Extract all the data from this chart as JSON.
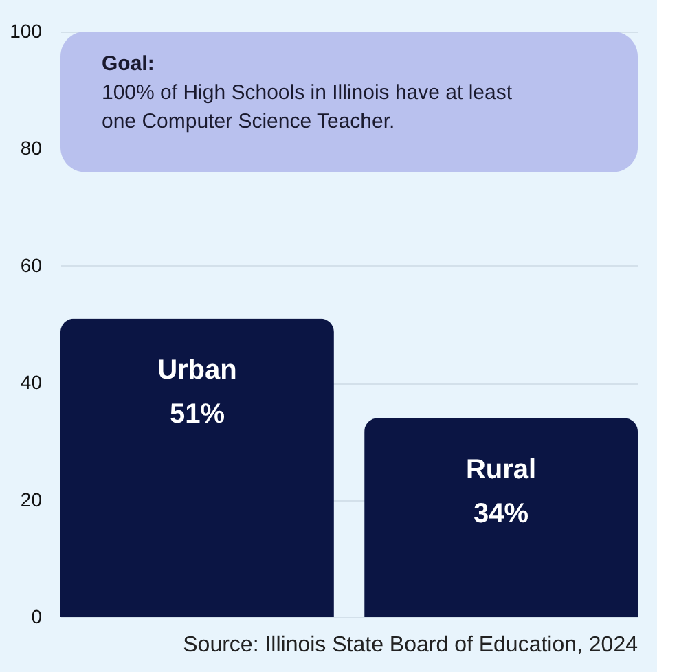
{
  "chart_data": {
    "type": "bar",
    "categories": [
      "Urban",
      "Rural"
    ],
    "values": [
      51,
      34
    ],
    "value_labels": [
      "51%",
      "34%"
    ],
    "color": "#0b1544",
    "ylim": [
      0,
      100
    ],
    "yticks": [
      0,
      20,
      40,
      60,
      80,
      100
    ],
    "grid": "y",
    "tick_labels": "y",
    "bands": [
      {
        "axis": "y",
        "from": 76,
        "to": 100,
        "color": "#b9c1ee",
        "label": "Goal:\n100% of High Schools in Illinois have at least\none Computer Science Teacher."
      }
    ],
    "annotations": [
      "Source: Illinois State Board of Education, 2024"
    ]
  }
}
